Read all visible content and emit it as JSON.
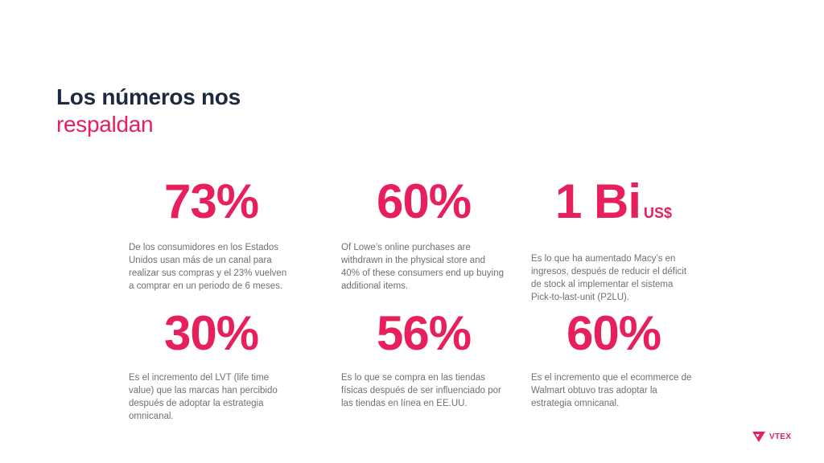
{
  "title": {
    "line1": "Los números nos",
    "line2": "respaldan"
  },
  "stats": [
    {
      "value": "73%",
      "unit": "",
      "text": "De los consumidores en los Estados Unidos usan más de un canal para realizar sus compras y el 23% vuelven a comprar en un periodo de 6 meses."
    },
    {
      "value": "60%",
      "unit": "",
      "text": "Of Lowe’s online purchases are withdrawn in the physical store and 40% of these consumers end up buying additional items."
    },
    {
      "value": "1 Bi",
      "unit": "US$",
      "text": "Es lo que ha aumentado Macy’s en ingresos, después de reducir el déficit de stock al implementar el sistema Pick-to-last-unit (P2LU)."
    },
    {
      "value": "30%",
      "unit": "",
      "text": "Es el incremento del LVT (life time value) que las marcas han percibido después de adoptar la estrategia omnicanal."
    },
    {
      "value": "56%",
      "unit": "",
      "text": "Es lo que se compra en las tiendas físicas después de ser influenciado por las tiendas en línea en EE.UU."
    },
    {
      "value": "60%",
      "unit": "",
      "text": "Es el incremento que el ecommerce de  Walmart obtuvo tras adoptar la estrategia omnicanal."
    }
  ],
  "logo": {
    "text": "VTEX",
    "icon": "vtex-logo-icon"
  },
  "colors": {
    "accent": "#e7205d",
    "heading": "#1b2a3e",
    "body_text": "#707070"
  }
}
